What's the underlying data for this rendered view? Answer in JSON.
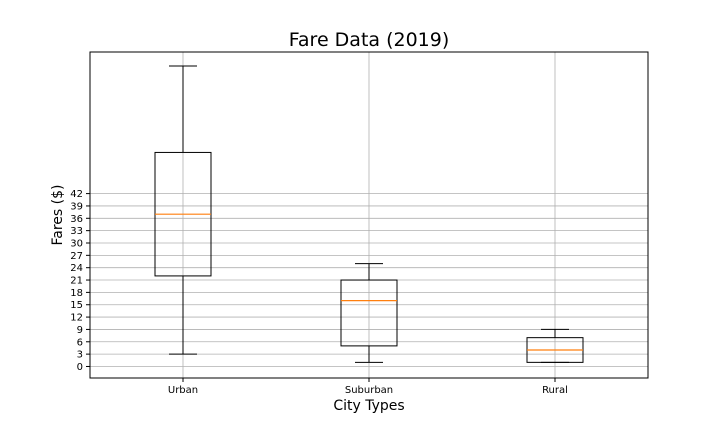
{
  "chart_data": {
    "type": "box",
    "title": "Fare Data (2019)",
    "xlabel": "City Types",
    "ylabel": "Fares ($)",
    "categories": [
      "Urban",
      "Suburban",
      "Rural"
    ],
    "yticks": [
      0,
      3,
      6,
      9,
      12,
      15,
      18,
      21,
      24,
      27,
      30,
      33,
      36,
      39,
      42
    ],
    "ylim": [
      -2.8,
      76.4
    ],
    "grid": true,
    "boxes": [
      {
        "category": "Urban",
        "whisker_low": 3.0,
        "q1": 22.0,
        "median": 37.0,
        "q3": 52.0,
        "whisker_high": 73.0
      },
      {
        "category": "Suburban",
        "whisker_low": 1.0,
        "q1": 5.0,
        "median": 16.0,
        "q3": 21.0,
        "whisker_high": 25.0
      },
      {
        "category": "Rural",
        "whisker_low": 1.0,
        "q1": 1.0,
        "median": 4.0,
        "q3": 7.0,
        "whisker_high": 9.0
      }
    ],
    "colors": {
      "box": "#000000",
      "median": "#ff7f0e",
      "grid": "#b0b0b0"
    }
  }
}
